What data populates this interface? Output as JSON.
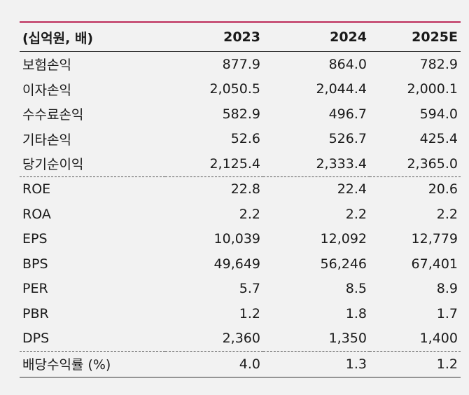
{
  "header": {
    "label": "(십억원, 배)",
    "years": [
      "2023",
      "2024",
      "2025E"
    ]
  },
  "rows": [
    {
      "label": "보험손익",
      "values": [
        "877.9",
        "864.0",
        "782.9"
      ]
    },
    {
      "label": "이자손익",
      "values": [
        "2,050.5",
        "2,044.4",
        "2,000.1"
      ]
    },
    {
      "label": "수수료손익",
      "values": [
        "582.9",
        "496.7",
        "594.0"
      ]
    },
    {
      "label": "기타손익",
      "values": [
        "52.6",
        "526.7",
        "425.4"
      ]
    },
    {
      "label": "당기순이익",
      "values": [
        "2,125.4",
        "2,333.4",
        "2,365.0"
      ]
    },
    {
      "label": "ROE",
      "values": [
        "22.8",
        "22.4",
        "20.6"
      ]
    },
    {
      "label": "ROA",
      "values": [
        "2.2",
        "2.2",
        "2.2"
      ]
    },
    {
      "label": "EPS",
      "values": [
        "10,039",
        "12,092",
        "12,779"
      ]
    },
    {
      "label": "BPS",
      "values": [
        "49,649",
        "56,246",
        "67,401"
      ]
    },
    {
      "label": "PER",
      "values": [
        "5.7",
        "8.5",
        "8.9"
      ]
    },
    {
      "label": "PBR",
      "values": [
        "1.2",
        "1.8",
        "1.7"
      ]
    },
    {
      "label": "DPS",
      "values": [
        "2,360",
        "1,350",
        "1,400"
      ]
    },
    {
      "label": "배당수익률 (%)",
      "values": [
        "4.0",
        "1.3",
        "1.2"
      ]
    }
  ],
  "colors": {
    "top_rule": "#c8557a",
    "background": "#f2f2f2"
  }
}
